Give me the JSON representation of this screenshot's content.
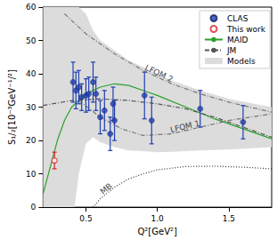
{
  "chart_data": {
    "type": "scatter",
    "x_label": "Q²[GeV²]",
    "y_label": "S₁/₂[10⁻³GeV⁻¹/²]",
    "xlim": [
      0.2,
      1.8
    ],
    "xticks": [
      0.5,
      {
        "value": 1,
        "label": "1.0"
      },
      1.5
    ],
    "ylim": [
      0,
      60
    ],
    "yticks": [
      0,
      10,
      20,
      30,
      40,
      50,
      60
    ],
    "grid": false,
    "legend": "upper right",
    "series": [
      {
        "name": "CLAS",
        "type": "scatter",
        "marker": "circle",
        "color": "#2140b0",
        "x": [
          0.41,
          0.43,
          0.45,
          0.47,
          0.5,
          0.52,
          0.55,
          0.57,
          0.6,
          0.63,
          0.67,
          0.69,
          0.7,
          0.91,
          0.96,
          1.3,
          1.6
        ],
        "values": [
          37.5,
          35,
          36,
          33,
          33.5,
          34,
          37.5,
          34,
          27,
          29,
          22,
          31,
          26,
          33.5,
          26,
          29.5,
          25.5
        ],
        "errors": [
          6,
          5.5,
          5,
          4,
          5,
          5,
          6,
          5,
          5,
          6,
          5,
          5,
          6,
          7,
          7,
          5.5,
          5
        ]
      },
      {
        "name": "This work",
        "type": "scatter",
        "marker": "open_circle",
        "color": "#d62728",
        "x": [
          0.28
        ],
        "values": [
          14
        ],
        "errors": [
          2.5
        ]
      },
      {
        "name": "MAID",
        "type": "line",
        "line_style": "solid",
        "color": "#2ca02c",
        "x": [
          0.2,
          0.25,
          0.3,
          0.35,
          0.4,
          0.5,
          0.6,
          0.7,
          0.8,
          0.9,
          1.0,
          1.2,
          1.4,
          1.6,
          1.8
        ],
        "values": [
          4,
          12,
          20,
          26,
          30,
          34,
          36,
          37,
          36.5,
          35,
          33.5,
          30,
          26.5,
          23.5,
          20.5
        ]
      },
      {
        "name": "JM",
        "type": "line",
        "line_style": "dashdot",
        "color": "#555555",
        "x": [
          0.2,
          0.4,
          0.6,
          0.8,
          1.0,
          1.2,
          1.4,
          1.6,
          1.8
        ],
        "values": [
          30.5,
          32,
          32.5,
          32,
          31,
          29.5,
          27,
          24,
          21
        ]
      },
      {
        "name": "Models",
        "type": "band",
        "color": "#dcdcdc",
        "x": [
          0.2,
          0.42,
          0.45,
          0.5,
          0.55,
          0.6,
          0.7,
          0.8,
          0.9,
          1.0,
          1.1,
          1.3,
          1.5,
          1.8
        ],
        "lower": [
          0,
          0,
          10,
          19,
          21,
          19.5,
          18,
          17,
          16.8,
          16.5,
          16.6,
          17,
          17.3,
          18
        ],
        "upper": [
          60,
          60,
          60,
          58,
          53,
          50,
          47,
          44,
          42,
          40,
          38,
          35,
          32.5,
          30
        ]
      },
      {
        "type": "line",
        "line_style": "dashdot",
        "color": "#777777",
        "x": [
          0.35,
          0.5,
          0.7,
          0.9,
          1.1,
          1.3,
          1.5,
          1.8
        ],
        "values": [
          58,
          52,
          46,
          41,
          37,
          34,
          31.5,
          28.5
        ],
        "annotation": {
          "text": "LFQM 2",
          "x": 1.0,
          "y": 39
        }
      },
      {
        "type": "line",
        "line_style": "dashdot",
        "color": "#777777",
        "x": [
          0.45,
          0.6,
          0.75,
          0.9,
          1.1,
          1.3,
          1.5,
          1.8
        ],
        "values": [
          32,
          27,
          23.5,
          21.5,
          22,
          24,
          26,
          28
        ],
        "annotation": {
          "text": "LFQM 1",
          "x": 1.2,
          "y": 23
        }
      },
      {
        "type": "line",
        "line_style": "dotted",
        "color": "#333333",
        "x": [
          0.55,
          0.6,
          0.7,
          0.8,
          0.9,
          1.0,
          1.2,
          1.4,
          1.6,
          1.8
        ],
        "values": [
          0,
          2.5,
          6,
          8.5,
          10,
          11.2,
          12.2,
          12.3,
          12,
          11.5
        ],
        "annotation": {
          "text": "MB",
          "x": 0.66,
          "y": 4.6
        }
      }
    ]
  }
}
